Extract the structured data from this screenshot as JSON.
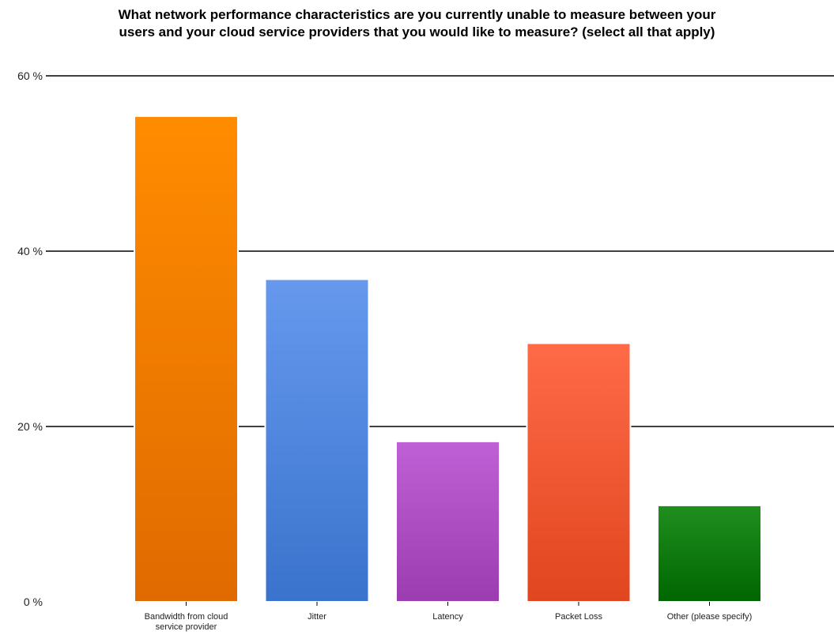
{
  "chart_data": {
    "type": "bar",
    "title": [
      "What network performance characteristics are you currently unable to measure between your",
      "users and your cloud service providers that you would like to measure? (select all that apply)"
    ],
    "xlabel": "",
    "ylabel": "",
    "ylim": [
      0,
      60
    ],
    "yticks": [
      0,
      20,
      40,
      60
    ],
    "ytick_labels": [
      "0 %",
      "20 %",
      "40 %",
      "60 %"
    ],
    "grid": true,
    "legend": "none",
    "categories": [
      [
        "Bandwidth from cloud",
        "service provider"
      ],
      [
        "Jitter"
      ],
      [
        "Latency"
      ],
      [
        "Packet Loss"
      ],
      [
        "Other (please specify)"
      ]
    ],
    "values": [
      55.4,
      36.8,
      18.3,
      29.5,
      11.0
    ],
    "colors": [
      [
        "#ff8c00",
        "#e06a00"
      ],
      [
        "#6699ee",
        "#3a73cc"
      ],
      [
        "#c060d6",
        "#9b3db0"
      ],
      [
        "#ff6a47",
        "#e0461f"
      ],
      [
        "#1f8f1f",
        "#006600"
      ]
    ]
  }
}
